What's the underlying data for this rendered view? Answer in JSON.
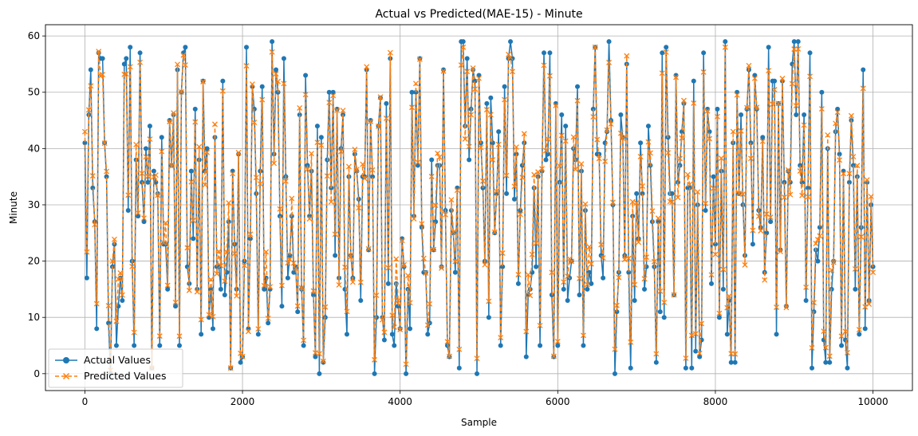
{
  "chart_data": {
    "type": "line",
    "title": "Actual vs Predicted(MAE-15) - Minute",
    "xlabel": "Sample",
    "ylabel": "Minute",
    "xlim": [
      -500,
      10500
    ],
    "ylim": [
      -3,
      62
    ],
    "xticks": [
      0,
      2000,
      4000,
      6000,
      8000,
      10000
    ],
    "yticks": [
      0,
      10,
      20,
      30,
      40,
      50,
      60
    ],
    "grid": true,
    "legend_position": "lower-left",
    "sample_count": 10000,
    "series": [
      {
        "name": "Actual Values",
        "color": "#1f77b4",
        "marker": "circle",
        "line_style": "solid",
        "value_range": [
          0,
          59
        ],
        "first_value": 41,
        "last_value": 19
      },
      {
        "name": "Predicted Values",
        "color": "#ff7f0e",
        "marker": "x",
        "line_style": "dashed",
        "value_range": [
          0,
          58
        ],
        "first_value": 43,
        "last_value": 18
      }
    ]
  }
}
